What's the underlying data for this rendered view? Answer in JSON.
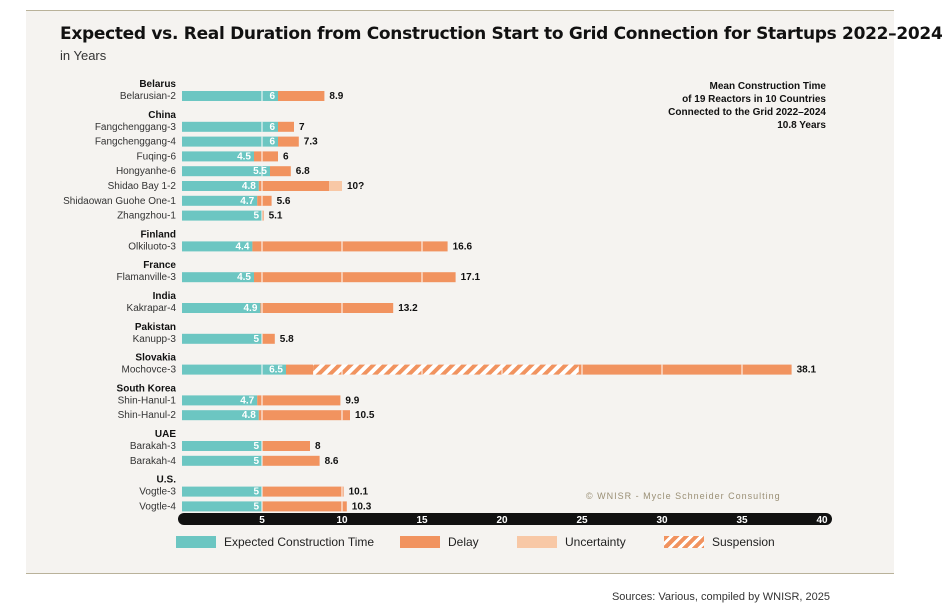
{
  "header": {
    "title": "Expected vs. Real Duration from Construction Start to Grid Connection for Startups 2022–2024",
    "subtitle": "in Years"
  },
  "note": {
    "lines": [
      "Mean Construction Time",
      "of 19 Reactors in 10 Countries",
      "Connected to the Grid 2022–2024",
      "10.8 Years"
    ]
  },
  "copyright": "© WNISR - Mycle Schneider Consulting",
  "source": "Sources: Various, compiled by WNISR, 2025",
  "legend": {
    "expected": "Expected Construction Time",
    "delay": "Delay",
    "uncertainty": "Uncertainty",
    "suspension": "Suspension"
  },
  "colors": {
    "expected": "#6cc6c2",
    "delay": "#f1935f",
    "uncertainty": "#f8c8a6",
    "suspension": "#f1935f"
  },
  "chart_data": {
    "type": "bar",
    "orientation": "horizontal",
    "stacked": true,
    "xlim": [
      0,
      40
    ],
    "xticks": [
      5,
      10,
      15,
      20,
      25,
      30,
      35,
      40
    ],
    "grid": false,
    "legend_position": "bottom",
    "groups": [
      {
        "country": "Belarus",
        "reactors": [
          {
            "name": "Belarusian-2",
            "expected": 6,
            "total": 8.9,
            "total_label": "8.9"
          }
        ]
      },
      {
        "country": "China",
        "reactors": [
          {
            "name": "Fangchenggang-3",
            "expected": 6,
            "total": 7,
            "total_label": "7"
          },
          {
            "name": "Fangchenggang-4",
            "expected": 6,
            "total": 7.3,
            "total_label": "7.3"
          },
          {
            "name": "Fuqing-6",
            "expected": 4.5,
            "total": 6,
            "total_label": "6"
          },
          {
            "name": "Hongyanhe-6",
            "expected": 5.5,
            "total": 6.8,
            "total_label": "6.8"
          },
          {
            "name": "Shidao Bay 1-2",
            "expected": 4.8,
            "total": 10,
            "delay_end": 9.2,
            "uncertainty_end": 10,
            "total_label": "10?"
          },
          {
            "name": "Shidaowan Guohe One-1",
            "expected": 4.7,
            "total": 5.6,
            "total_label": "5.6"
          },
          {
            "name": "Zhangzhou-1",
            "expected": 5,
            "total": 5.1,
            "total_label": "5.1"
          }
        ]
      },
      {
        "country": "Finland",
        "reactors": [
          {
            "name": "Olkiluoto-3",
            "expected": 4.4,
            "total": 16.6,
            "total_label": "16.6"
          }
        ]
      },
      {
        "country": "France",
        "reactors": [
          {
            "name": "Flamanville-3",
            "expected": 4.5,
            "total": 17.1,
            "total_label": "17.1"
          }
        ]
      },
      {
        "country": "India",
        "reactors": [
          {
            "name": "Kakrapar-4",
            "expected": 4.9,
            "total": 13.2,
            "total_label": "13.2"
          }
        ]
      },
      {
        "country": "Pakistan",
        "reactors": [
          {
            "name": "Kanupp-3",
            "expected": 5,
            "total": 5.8,
            "total_label": "5.8"
          }
        ]
      },
      {
        "country": "Slovakia",
        "reactors": [
          {
            "name": "Mochovce-3",
            "expected": 6.5,
            "total": 38.1,
            "suspension": [
              8.2,
              24.8
            ],
            "total_label": "38.1"
          }
        ]
      },
      {
        "country": "South Korea",
        "reactors": [
          {
            "name": "Shin-Hanul-1",
            "expected": 4.7,
            "total": 9.9,
            "total_label": "9.9"
          },
          {
            "name": "Shin-Hanul-2",
            "expected": 4.8,
            "total": 10.5,
            "total_label": "10.5"
          }
        ]
      },
      {
        "country": "UAE",
        "reactors": [
          {
            "name": "Barakah-3",
            "expected": 5,
            "total": 8,
            "total_label": "8"
          },
          {
            "name": "Barakah-4",
            "expected": 5,
            "total": 8.6,
            "total_label": "8.6"
          }
        ]
      },
      {
        "country": "U.S.",
        "reactors": [
          {
            "name": "Vogtle-3",
            "expected": 5,
            "total": 10.1,
            "total_label": "10.1"
          },
          {
            "name": "Vogtle-4",
            "expected": 5,
            "total": 10.3,
            "total_label": "10.3"
          }
        ]
      }
    ]
  }
}
